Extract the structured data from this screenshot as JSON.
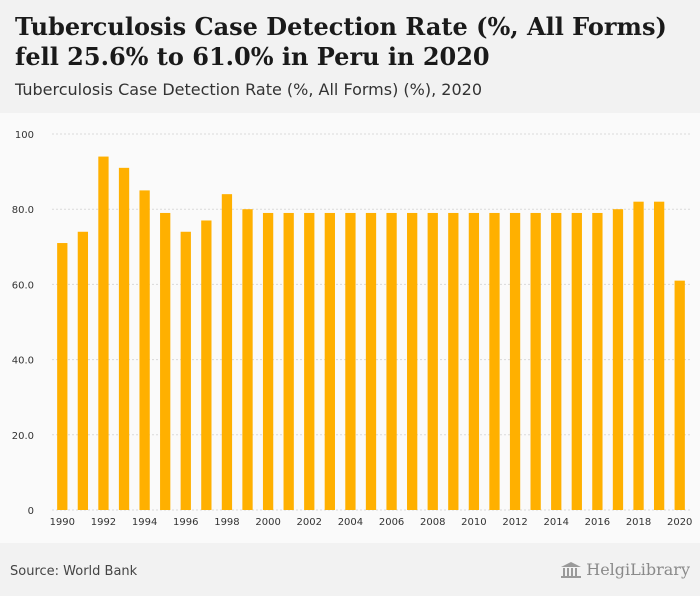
{
  "header": {
    "title": "Tuberculosis Case Detection Rate (%, All Forms) fell 25.6% to 61.0% in Peru in 2020",
    "subtitle": "Tuberculosis Case Detection Rate (%, All Forms) (%), 2020"
  },
  "footer": {
    "source": "Source: World Bank",
    "logo_text": "HelgiLibrary",
    "logo_icon": "library-building-icon"
  },
  "colors": {
    "bar": "#ffb000",
    "grid": "#d9d9d9",
    "axis_text": "#333333"
  },
  "chart_data": {
    "type": "bar",
    "title": "Tuberculosis Case Detection Rate (%, All Forms) fell 25.6% to 61.0% in Peru in 2020",
    "subtitle": "Tuberculosis Case Detection Rate (%, All Forms) (%), 2020",
    "categories": [
      "1990",
      "1991",
      "1992",
      "1993",
      "1994",
      "1995",
      "1996",
      "1997",
      "1998",
      "1999",
      "2000",
      "2001",
      "2002",
      "2003",
      "2004",
      "2005",
      "2006",
      "2007",
      "2008",
      "2009",
      "2010",
      "2011",
      "2012",
      "2013",
      "2014",
      "2015",
      "2016",
      "2017",
      "2018",
      "2019",
      "2020"
    ],
    "values": [
      71,
      74,
      94,
      91,
      85,
      79,
      74,
      77,
      84,
      80,
      79,
      79,
      79,
      79,
      79,
      79,
      79,
      79,
      79,
      79,
      79,
      79,
      79,
      79,
      79,
      79,
      79,
      80,
      82,
      82,
      61
    ],
    "xtick_labels": [
      "1990",
      "1992",
      "1994",
      "1996",
      "1998",
      "2000",
      "2002",
      "2004",
      "2006",
      "2008",
      "2010",
      "2012",
      "2014",
      "2016",
      "2018",
      "2020"
    ],
    "yticks": [
      0,
      20,
      40,
      60,
      80,
      100
    ],
    "ytick_labels": [
      "0",
      "20.0",
      "40.0",
      "60.0",
      "80.0",
      "100"
    ],
    "xlabel": "",
    "ylabel": "",
    "ylim": [
      0,
      100
    ],
    "grid": true,
    "legend": "none"
  }
}
